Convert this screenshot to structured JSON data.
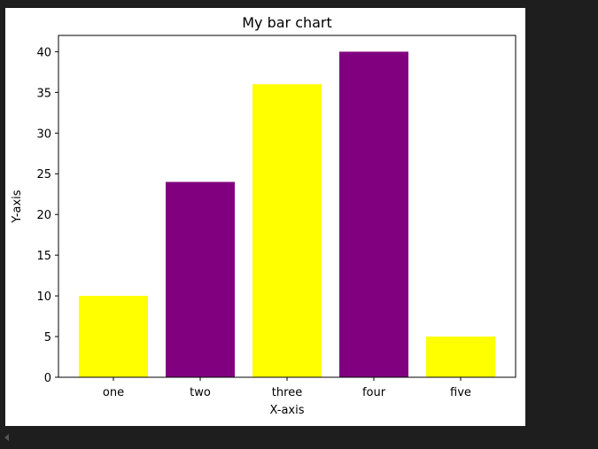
{
  "chart_data": {
    "type": "bar",
    "title": "My bar chart",
    "xlabel": "X-axis",
    "ylabel": "Y-axis",
    "categories": [
      "one",
      "two",
      "three",
      "four",
      "five"
    ],
    "values": [
      10,
      24,
      36,
      40,
      5
    ],
    "bar_colors": [
      "#ffff00",
      "#800080",
      "#ffff00",
      "#800080",
      "#ffff00"
    ],
    "ylim": [
      0,
      42
    ],
    "yticks": [
      0,
      5,
      10,
      15,
      20,
      25,
      30,
      35,
      40
    ],
    "grid": false,
    "legend": "none"
  },
  "colors": {
    "figure_background": "#ffffff",
    "page_background": "#1e1e1e",
    "axis": "#000000"
  }
}
